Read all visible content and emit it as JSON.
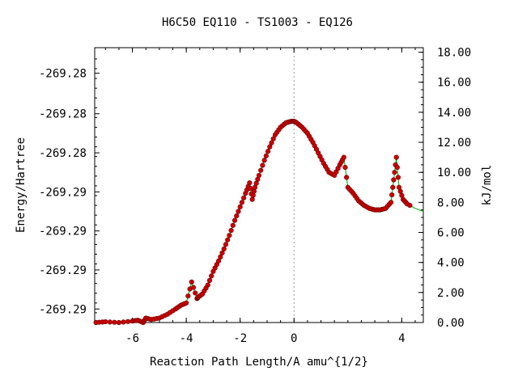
{
  "chart_data": {
    "type": "line",
    "title": "H6C50   EQ110 - TS1003 - EQ126",
    "xlabel": "Reaction Path Length/A amu^{1/2}",
    "ylabel_left": "Energy/Hartree",
    "ylabel_right": "kJ/mol",
    "xlim": [
      -7.4,
      4.8
    ],
    "ylim_right": [
      0,
      18.3
    ],
    "x_ticks": [
      -6,
      -4,
      -2,
      0,
      4
    ],
    "x_tick_labels": [
      "-6",
      "-4",
      "-2",
      "0",
      "4"
    ],
    "right_ticks": [
      0,
      2,
      4,
      6,
      8,
      10,
      12,
      14,
      16,
      18
    ],
    "right_tick_labels": [
      "0.00",
      "2.00",
      "4.00",
      "6.00",
      "8.00",
      "10.00",
      "12.00",
      "14.00",
      "16.00",
      "18.00"
    ],
    "left_tick_values_kj": [
      0.9,
      3.5,
      6.1,
      8.7,
      11.3,
      13.9,
      16.6
    ],
    "left_tick_labels": [
      "-269.29",
      "-269.29",
      "-269.29",
      "-269.29",
      "-269.28",
      "-269.28",
      "-269.28"
    ],
    "ts_x": 0,
    "line_color": "#00aa00",
    "marker_color": "#cc0000",
    "series": [
      {
        "x": [
          -7.35,
          -7.0,
          -6.5,
          -6.0,
          -5.8,
          -5.6,
          -5.5,
          -5.3,
          -5.0,
          -4.7,
          -4.4,
          -4.2,
          -4.0,
          -3.8,
          -3.6,
          -3.55,
          -3.4,
          -3.2,
          -3.0,
          -2.8,
          -2.6,
          -2.4,
          -2.2,
          -2.0,
          -1.8,
          -1.65,
          -1.55,
          -1.45,
          -1.3,
          -1.1,
          -0.9,
          -0.7,
          -0.5,
          -0.3,
          -0.1,
          0.0,
          0.1,
          0.3,
          0.5,
          0.7,
          0.9,
          1.1,
          1.3,
          1.5,
          1.7,
          1.85,
          2.0,
          2.2,
          2.4,
          2.6,
          2.8,
          3.0,
          3.2,
          3.4,
          3.6,
          3.7,
          3.8,
          3.9,
          4.05,
          4.2,
          4.5,
          4.8
        ],
        "y": [
          0.0,
          0.05,
          0.0,
          0.1,
          0.15,
          0.0,
          0.3,
          0.2,
          0.3,
          0.55,
          0.9,
          1.15,
          1.3,
          2.7,
          1.6,
          1.7,
          1.9,
          2.5,
          3.4,
          4.1,
          4.9,
          5.8,
          6.8,
          7.7,
          8.6,
          9.3,
          8.2,
          9.0,
          9.8,
          10.8,
          11.7,
          12.5,
          13.0,
          13.3,
          13.4,
          13.4,
          13.3,
          13.0,
          12.6,
          12.0,
          11.3,
          10.6,
          10.0,
          9.8,
          10.5,
          11.0,
          9.0,
          8.6,
          8.1,
          7.8,
          7.6,
          7.5,
          7.5,
          7.6,
          8.0,
          9.5,
          11.0,
          9.0,
          8.2,
          7.9,
          7.6,
          7.4
        ]
      }
    ]
  }
}
